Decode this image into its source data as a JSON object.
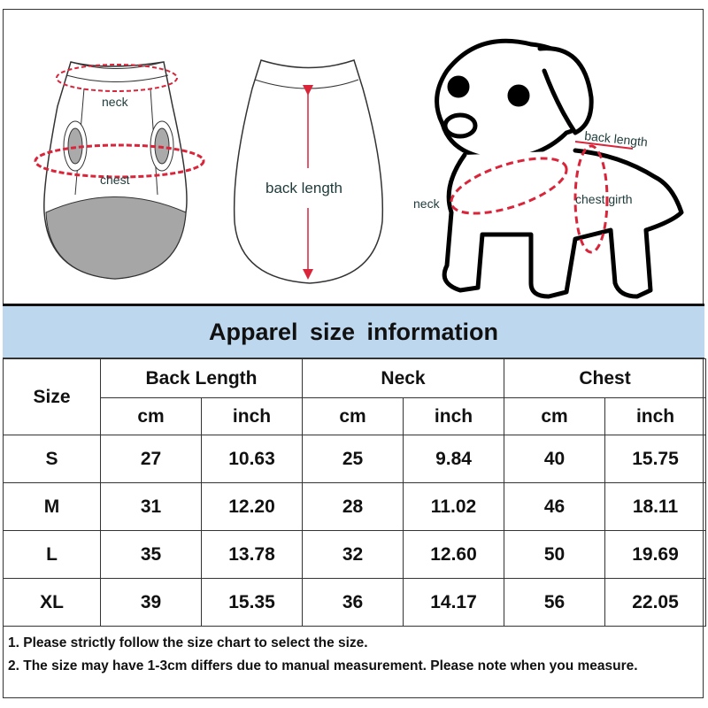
{
  "illustrations": {
    "vest_front": {
      "neck_label": "neck",
      "chest_label": "chest"
    },
    "vest_back": {
      "back_length_label": "back length"
    },
    "dog": {
      "back_length_label": "back length",
      "neck_label": "neck",
      "chest_label": "chest girth"
    },
    "accent_color": "#d9243a"
  },
  "title": "Apparel size information",
  "table": {
    "size_header": "Size",
    "groups": [
      "Back Length",
      "Neck",
      "Chest"
    ],
    "units": [
      "cm",
      "inch",
      "cm",
      "inch",
      "cm",
      "inch"
    ],
    "rows": [
      {
        "size": "S",
        "values": [
          "27",
          "10.63",
          "25",
          "9.84",
          "40",
          "15.75"
        ]
      },
      {
        "size": "M",
        "values": [
          "31",
          "12.20",
          "28",
          "11.02",
          "46",
          "18.11"
        ]
      },
      {
        "size": "L",
        "values": [
          "35",
          "13.78",
          "32",
          "12.60",
          "50",
          "19.69"
        ]
      },
      {
        "size": "XL",
        "values": [
          "39",
          "15.35",
          "36",
          "14.17",
          "56",
          "22.05"
        ]
      }
    ]
  },
  "notes": [
    "1. Please strictly follow the size chart  to select the size.",
    "2. The size may have 1-3cm differs due to manual measurement. Please note when you measure."
  ],
  "header_color": "#bdd7ee"
}
